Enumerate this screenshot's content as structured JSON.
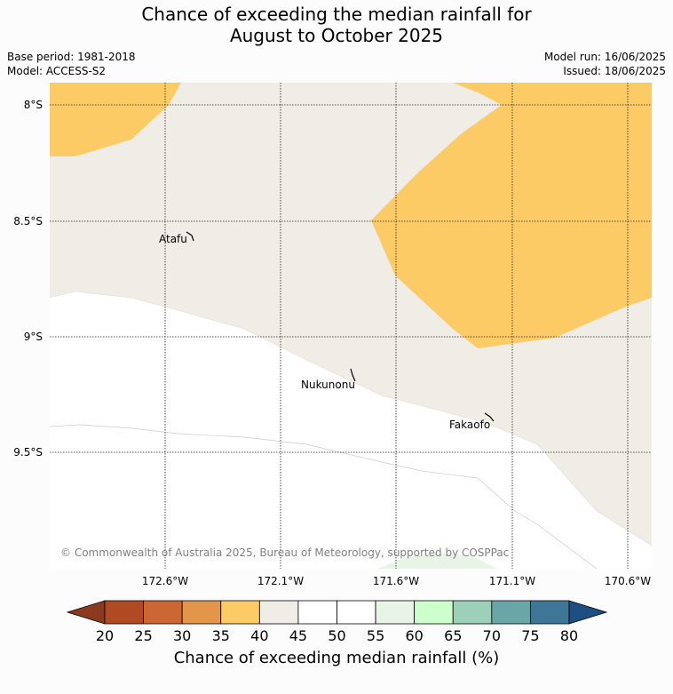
{
  "header": {
    "title_line1": "Chance of exceeding the median rainfall for",
    "title_line2": "August to October 2025",
    "base_period": "Base period: 1981-2018",
    "model": "Model: ACCESS-S2",
    "model_run": "Model run: 16/06/2025",
    "issued": "Issued: 18/06/2025"
  },
  "map": {
    "lat_labels": [
      "8°S",
      "8.5°S",
      "9°S",
      "9.5°S"
    ],
    "lon_labels": [
      "172.6°W",
      "172.1°W",
      "171.6°W",
      "171.1°W",
      "170.6°W"
    ],
    "places": [
      "Atafu",
      "Nukunonu",
      "Fakaofo"
    ],
    "copyright": "© Commonwealth of Australia 2025, Bureau of Meteorology, supported by COSPPac"
  },
  "colorbar": {
    "ticks": [
      "20",
      "25",
      "30",
      "35",
      "40",
      "45",
      "50",
      "55",
      "60",
      "65",
      "70",
      "75",
      "80"
    ],
    "colors": [
      "#8b3a1f",
      "#b04a22",
      "#cc6632",
      "#e3954a",
      "#fdcb66",
      "#f0ece6",
      "#ffffff",
      "#ffffff",
      "#e8f5e6",
      "#ccffcc",
      "#9dd0b8",
      "#6aa5a8",
      "#3f7596",
      "#1e4f82"
    ],
    "label": "Chance of exceeding median rainfall (%)"
  }
}
